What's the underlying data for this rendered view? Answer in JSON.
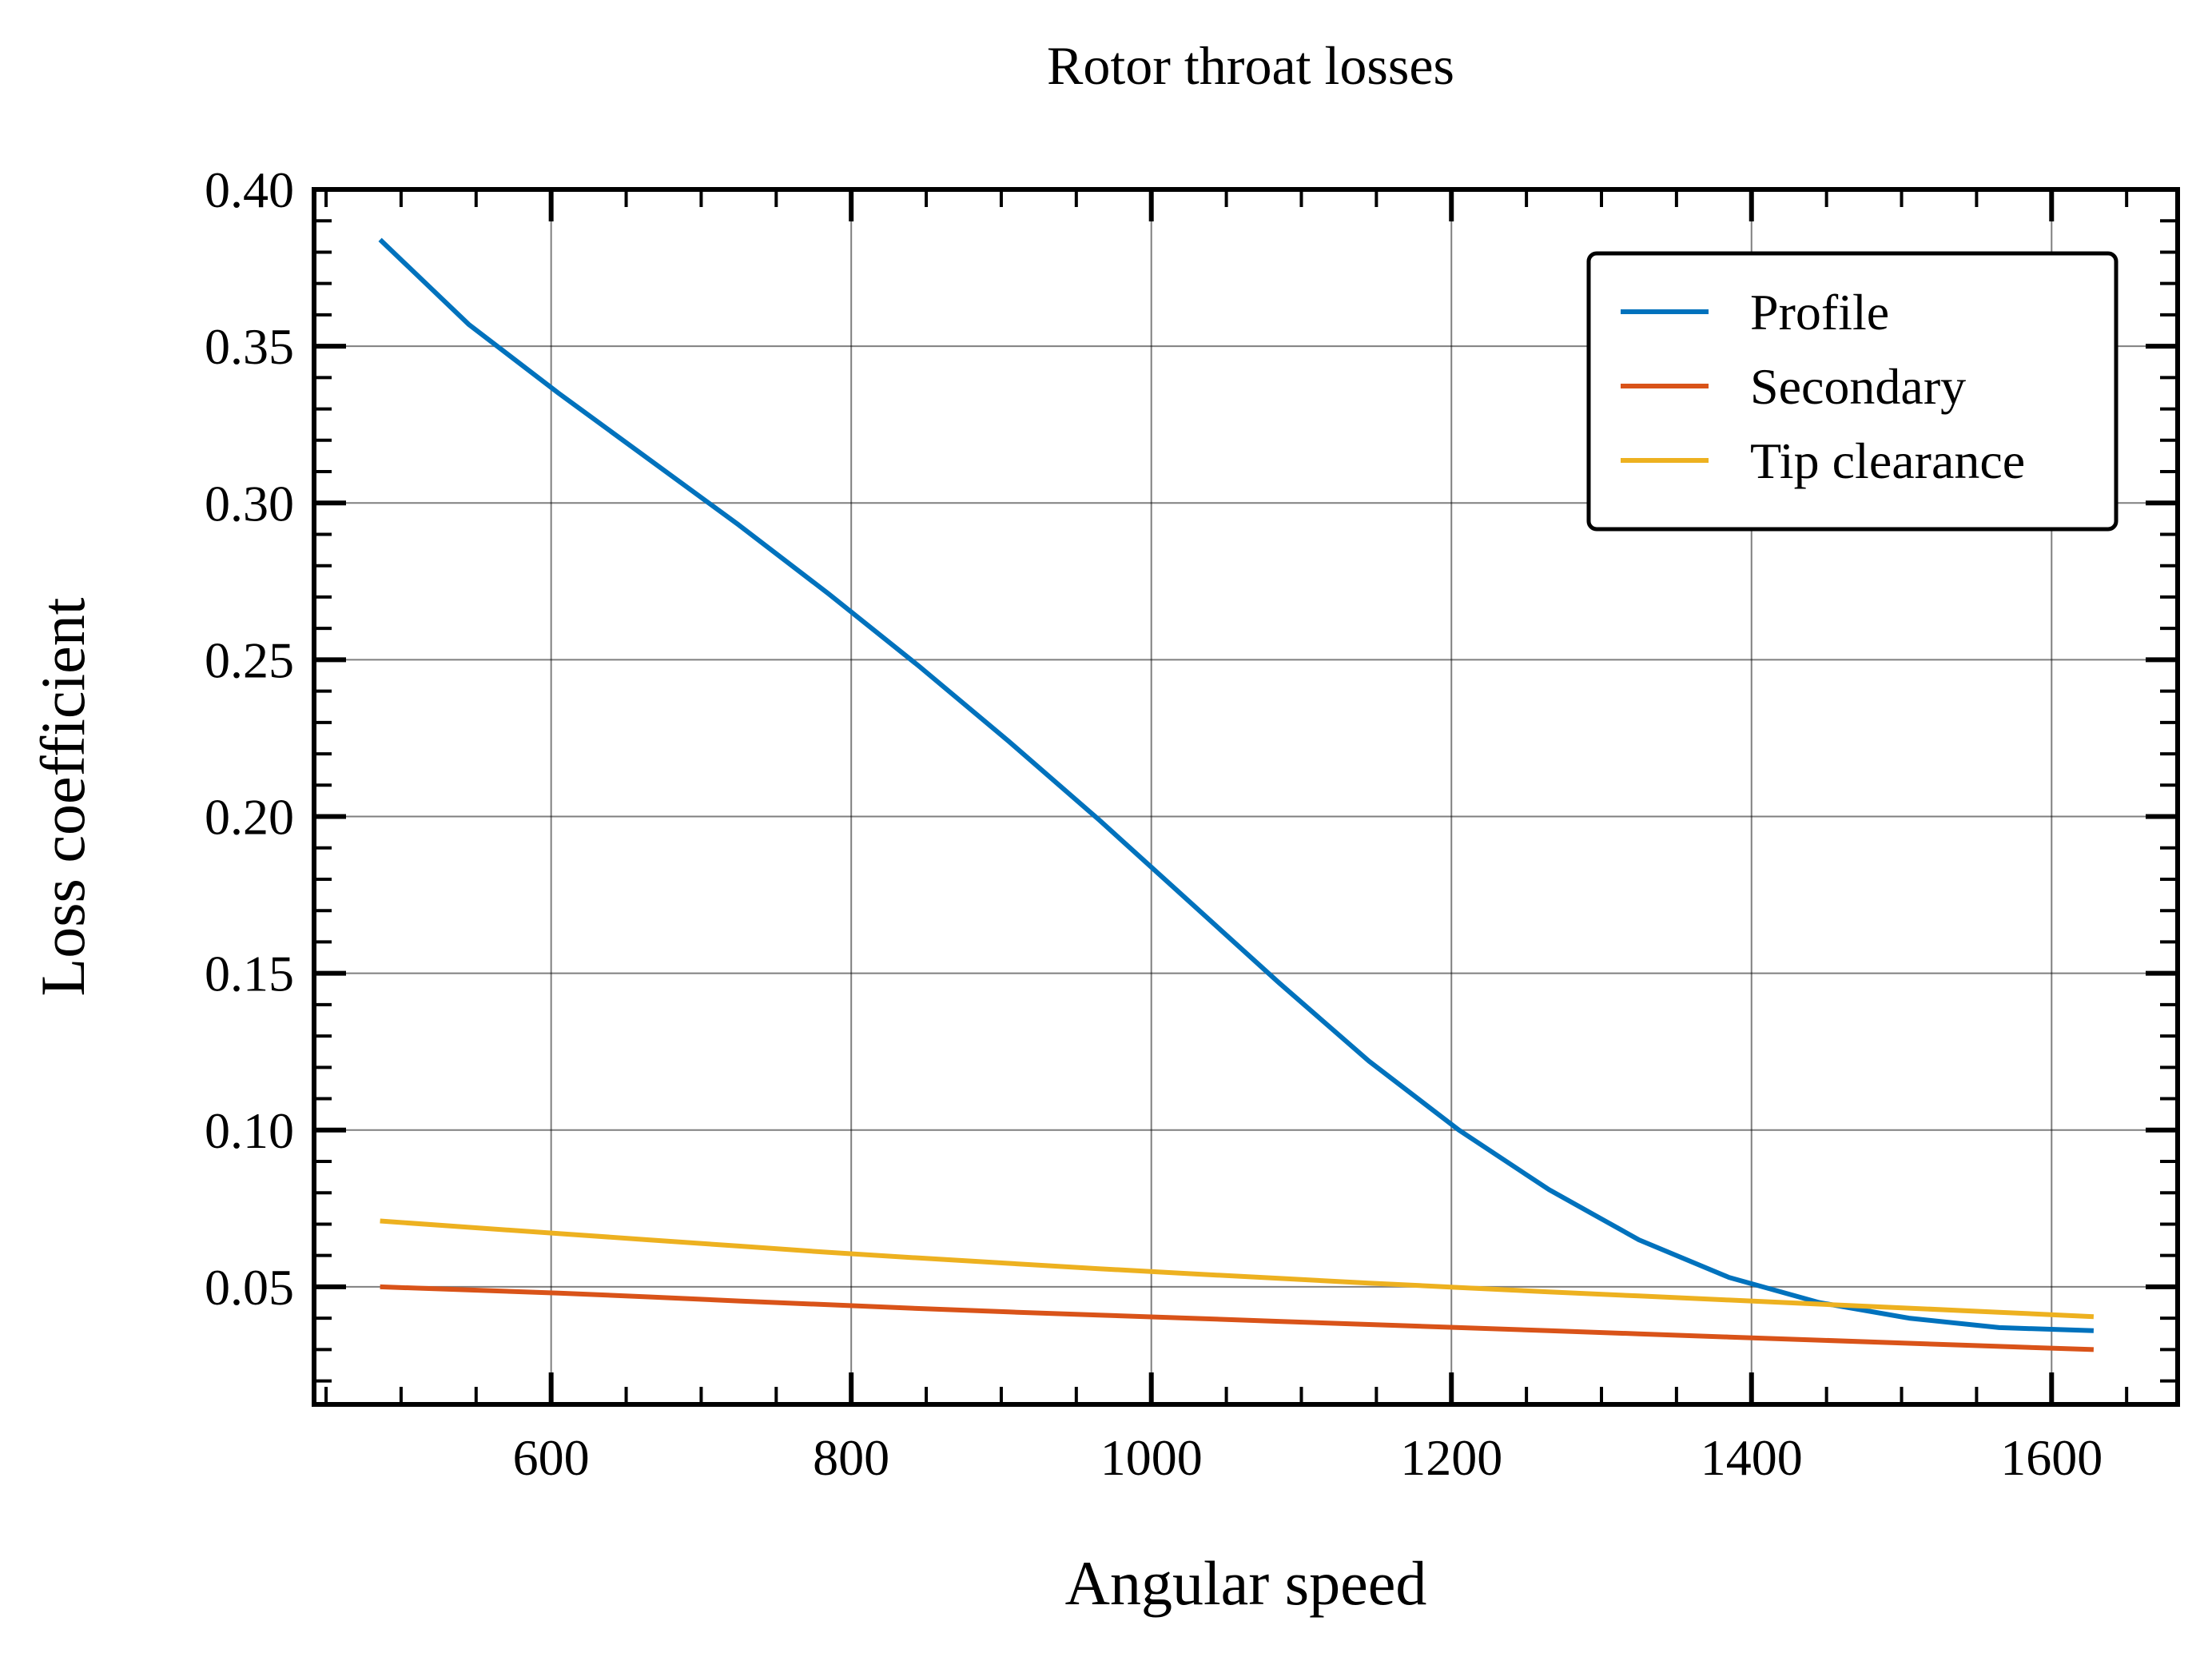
{
  "chart_data": {
    "type": "line",
    "title": "Rotor throat losses",
    "xlabel": "Angular speed",
    "ylabel": "Loss coefficient",
    "xlim": [
      442,
      1684
    ],
    "ylim": [
      0.0125,
      0.4
    ],
    "xticks": [
      600,
      800,
      1000,
      1200,
      1400,
      1600
    ],
    "yticks": [
      0.05,
      0.1,
      0.15,
      0.2,
      0.25,
      0.3,
      0.35,
      0.4
    ],
    "xtick_labels": [
      "600",
      "800",
      "1000",
      "1200",
      "1400",
      "1600"
    ],
    "ytick_labels": [
      "0.05",
      "0.10",
      "0.15",
      "0.20",
      "0.25",
      "0.30",
      "0.35",
      "0.40"
    ],
    "grid": true,
    "legend_position": "top-right",
    "series": [
      {
        "name": "Profile",
        "color": "#0072BD",
        "x": [
          486,
          545,
          605,
          665,
          725,
          785,
          845,
          905,
          965,
          1025,
          1085,
          1145,
          1205,
          1265,
          1325,
          1385,
          1445,
          1505,
          1565,
          1628
        ],
        "y": [
          0.384,
          0.357,
          0.335,
          0.314,
          0.293,
          0.271,
          0.248,
          0.224,
          0.199,
          0.173,
          0.147,
          0.122,
          0.1,
          0.081,
          0.065,
          0.053,
          0.045,
          0.04,
          0.037,
          0.036
        ]
      },
      {
        "name": "Secondary",
        "color": "#D95319",
        "x": [
          486,
          545,
          605,
          665,
          725,
          785,
          845,
          905,
          965,
          1025,
          1085,
          1145,
          1205,
          1265,
          1325,
          1385,
          1445,
          1505,
          1565,
          1628
        ],
        "y": [
          0.05,
          0.049,
          0.048,
          0.0468,
          0.0455,
          0.0443,
          0.0431,
          0.042,
          0.041,
          0.04,
          0.039,
          0.038,
          0.037,
          0.036,
          0.035,
          0.034,
          0.033,
          0.032,
          0.031,
          0.03
        ]
      },
      {
        "name": "Tip clearance",
        "color": "#EDB120",
        "x": [
          486,
          545,
          605,
          665,
          725,
          785,
          845,
          905,
          965,
          1025,
          1085,
          1145,
          1205,
          1265,
          1325,
          1385,
          1445,
          1505,
          1565,
          1628
        ],
        "y": [
          0.071,
          0.069,
          0.067,
          0.065,
          0.063,
          0.061,
          0.0592,
          0.0575,
          0.0558,
          0.0542,
          0.0527,
          0.0512,
          0.0498,
          0.0484,
          0.0471,
          0.0458,
          0.0445,
          0.0432,
          0.0419,
          0.0405
        ]
      }
    ]
  }
}
